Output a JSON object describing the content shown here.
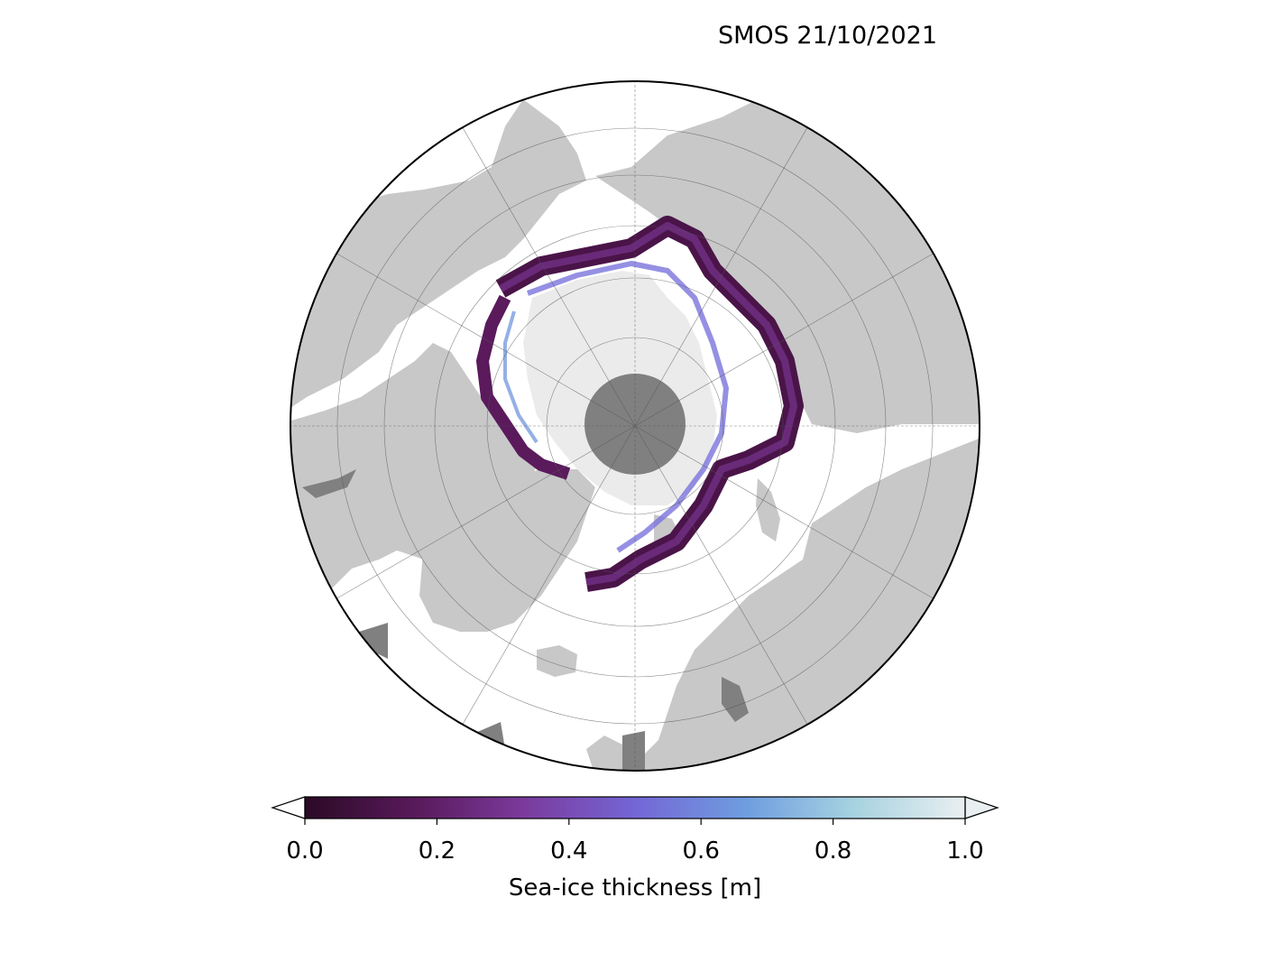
{
  "title": "SMOS 21/10/2021",
  "colorbar": {
    "label": "Sea-ice thickness [m]",
    "ticks": [
      "0.0",
      "0.2",
      "0.4",
      "0.6",
      "0.8",
      "1.0"
    ],
    "min": 0.0,
    "max": 1.0,
    "extend": "both",
    "colormap": [
      "#2a0a26",
      "#5a1a5c",
      "#7b3a9c",
      "#7466d6",
      "#6f9ee0",
      "#a6d2e0",
      "#e9eff0"
    ]
  },
  "map": {
    "projection": "north-polar-stereographic",
    "land_color": "#c8c8c8",
    "lake_color": "#808080",
    "ocean_color": "#ffffff",
    "thick_ice_color": "#ebebeb",
    "pole_hole_color": "#808080",
    "gridlines": true
  }
}
